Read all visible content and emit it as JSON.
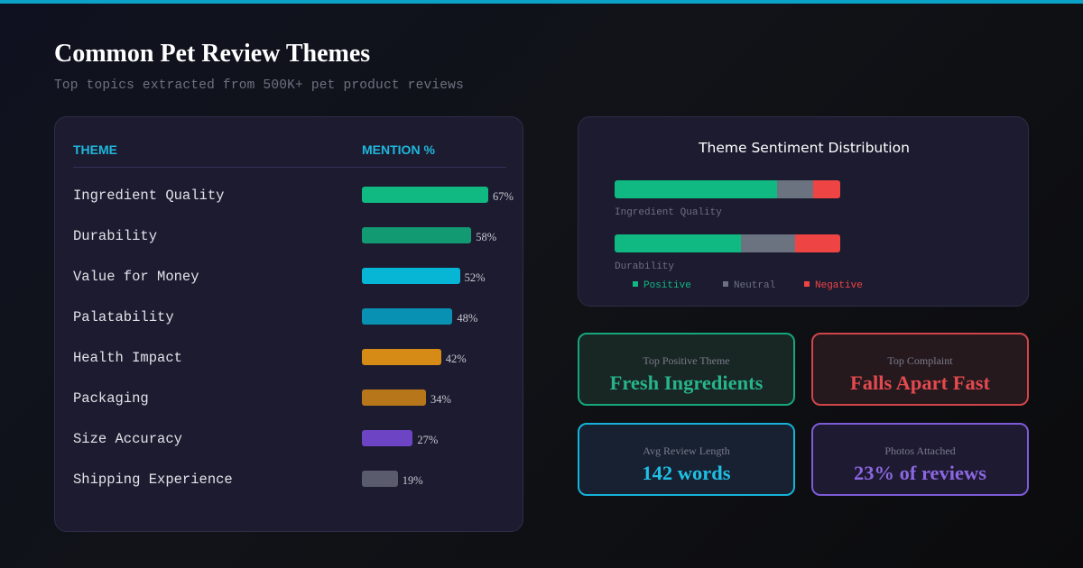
{
  "header": {
    "title": "Common Pet Review Themes",
    "subtitle": "Top topics extracted from 500K+ pet product reviews"
  },
  "chart_data": [
    {
      "type": "bar",
      "orientation": "horizontal",
      "column_headers": {
        "theme": "THEME",
        "mention": "MENTION %"
      },
      "categories": [
        "Ingredient Quality",
        "Durability",
        "Value for Money",
        "Palatability",
        "Health Impact",
        "Packaging",
        "Size Accuracy",
        "Shipping Experience"
      ],
      "values": [
        67,
        58,
        52,
        48,
        42,
        34,
        27,
        19
      ],
      "value_labels": [
        "67%",
        "58%",
        "52%",
        "48%",
        "42%",
        "34%",
        "27%",
        "19%"
      ],
      "bar_colors": [
        "#10b981",
        "#129b73",
        "#06b6d4",
        "#0891b2",
        "#d68b16",
        "#b7761a",
        "#6d44c4",
        "#5a5c6d"
      ],
      "xlim": [
        0,
        100
      ]
    },
    {
      "type": "bar",
      "stacked": true,
      "orientation": "horizontal",
      "title": "Theme Sentiment Distribution",
      "categories": [
        "Ingredient Quality",
        "Durability"
      ],
      "series": [
        {
          "name": "Positive",
          "values": [
            72,
            56
          ],
          "color": "#10b981"
        },
        {
          "name": "Neutral",
          "values": [
            16,
            24
          ],
          "color": "#6b7280"
        },
        {
          "name": "Negative",
          "values": [
            12,
            20
          ],
          "color": "#ef4444"
        }
      ],
      "xlim": [
        0,
        100
      ],
      "legend_position": "bottom"
    }
  ],
  "cards": [
    {
      "label": "Top Positive Theme",
      "value": "Fresh Ingredients"
    },
    {
      "label": "Top Complaint",
      "value": "Falls Apart Fast"
    },
    {
      "label": "Avg Review Length",
      "value": "142 words"
    },
    {
      "label": "Photos Attached",
      "value": "23% of reviews"
    }
  ]
}
